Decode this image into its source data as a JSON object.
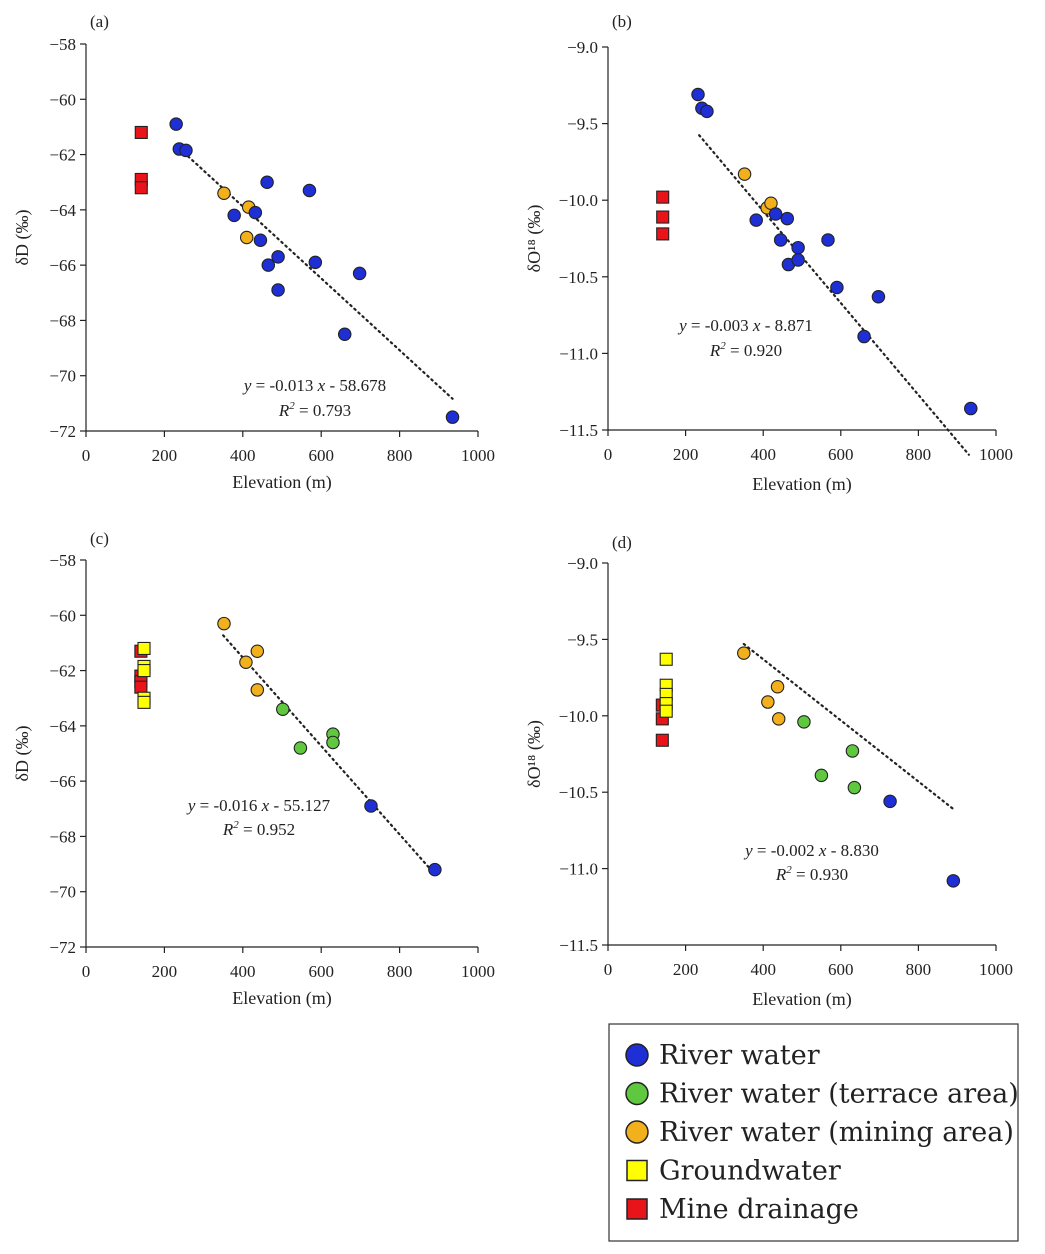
{
  "colors": {
    "river": "#1f2fd6",
    "terrace": "#5fc83e",
    "mining": "#f2b01c",
    "groundwater": "#ffff00",
    "drainage": "#e8141a"
  },
  "legend": {
    "items": [
      {
        "name": "River water",
        "type": "river",
        "shape": "circle"
      },
      {
        "name": "River water (terrace area)",
        "type": "terrace",
        "shape": "circle"
      },
      {
        "name": "River water (mining area)",
        "type": "mining",
        "shape": "circle"
      },
      {
        "name": "Groundwater",
        "type": "groundwater",
        "shape": "square"
      },
      {
        "name": "Mine drainage",
        "type": "drainage",
        "shape": "square"
      }
    ]
  },
  "chart_data": [
    {
      "id": "a",
      "label": "(a)",
      "type": "scatter",
      "xlabel": "Elevation (m)",
      "ylabel": "δD (‰)",
      "xlim": [
        0,
        1000
      ],
      "ylim": [
        -72,
        -58
      ],
      "xticks": [
        0,
        200,
        400,
        600,
        800,
        1000
      ],
      "yticks": [
        -58,
        -60,
        -62,
        -64,
        -66,
        -68,
        -70,
        -72
      ],
      "xtick_labels": [
        "0",
        "200",
        "400",
        "600",
        "800",
        "1000"
      ],
      "ytick_labels": [
        "−58",
        "−60",
        "−62",
        "−64",
        "−66",
        "−68",
        "−70",
        "−72"
      ],
      "equation": {
        "y": "y",
        "pre": " = -0.013 ",
        "x": "x",
        "post": " - 58.678"
      },
      "r2": {
        "r": "R",
        "sup": "2",
        "val": " = 0.793"
      },
      "trend_range": [
        240,
        935
      ],
      "slope": -0.013,
      "intercept": -58.678,
      "series": [
        {
          "type": "drainage",
          "points": [
            [
              141,
              -61.2
            ],
            [
              141,
              -62.9
            ],
            [
              141,
              -63.2
            ]
          ]
        },
        {
          "type": "mining",
          "points": [
            [
              352,
              -63.4
            ],
            [
              415,
              -63.9
            ],
            [
              410,
              -65.0
            ]
          ]
        },
        {
          "type": "river",
          "points": [
            [
              230,
              -60.9
            ],
            [
              238,
              -61.8
            ],
            [
              255,
              -61.85
            ],
            [
              378,
              -64.2
            ],
            [
              432,
              -64.1
            ],
            [
              445,
              -65.1
            ],
            [
              462,
              -63.0
            ],
            [
              465,
              -66.0
            ],
            [
              490,
              -65.7
            ],
            [
              490,
              -66.9
            ],
            [
              570,
              -63.3
            ],
            [
              585,
              -65.9
            ],
            [
              698,
              -66.3
            ],
            [
              660,
              -68.5
            ],
            [
              935,
              -71.5
            ]
          ]
        }
      ]
    },
    {
      "id": "b",
      "label": "(b)",
      "type": "scatter",
      "xlabel": "Elevation (m)",
      "ylabel": "δO¹⁸ (‰)",
      "xlim": [
        0,
        1000
      ],
      "ylim": [
        -11.5,
        -9.0
      ],
      "xticks": [
        0,
        200,
        400,
        600,
        800,
        1000
      ],
      "yticks": [
        -9.0,
        -9.5,
        -10.0,
        -10.5,
        -11.0,
        -11.5
      ],
      "xtick_labels": [
        "0",
        "200",
        "400",
        "600",
        "800",
        "1000"
      ],
      "ytick_labels": [
        "−9.0",
        "−9.5",
        "−10.0",
        "−10.5",
        "−11.0",
        "−11.5"
      ],
      "equation": {
        "y": "y",
        "pre": " = -0.003  ",
        "x": "x",
        "post": " - 8.871"
      },
      "r2": {
        "r": "R",
        "sup": "2",
        "val": " = 0.920"
      },
      "trend_range": [
        235,
        930
      ],
      "slope": -0.003,
      "intercept": -8.871,
      "series": [
        {
          "type": "drainage",
          "points": [
            [
              141,
              -9.98
            ],
            [
              141,
              -10.11
            ],
            [
              141,
              -10.22
            ]
          ]
        },
        {
          "type": "mining",
          "points": [
            [
              352,
              -9.83
            ],
            [
              410,
              -10.05
            ],
            [
              420,
              -10.02
            ]
          ]
        },
        {
          "type": "river",
          "points": [
            [
              232,
              -9.31
            ],
            [
              242,
              -9.4
            ],
            [
              255,
              -9.42
            ],
            [
              382,
              -10.13
            ],
            [
              432,
              -10.09
            ],
            [
              445,
              -10.26
            ],
            [
              462,
              -10.12
            ],
            [
              465,
              -10.42
            ],
            [
              490,
              -10.31
            ],
            [
              490,
              -10.39
            ],
            [
              567,
              -10.26
            ],
            [
              590,
              -10.57
            ],
            [
              697,
              -10.63
            ],
            [
              660,
              -10.89
            ],
            [
              935,
              -11.36
            ]
          ]
        }
      ]
    },
    {
      "id": "c",
      "label": "(c)",
      "type": "scatter",
      "xlabel": "Elevation (m)",
      "ylabel": "δD (‰)",
      "xlim": [
        0,
        1000
      ],
      "ylim": [
        -72,
        -58
      ],
      "xticks": [
        0,
        200,
        400,
        600,
        800,
        1000
      ],
      "yticks": [
        -58,
        -60,
        -62,
        -64,
        -66,
        -68,
        -70,
        -72
      ],
      "xtick_labels": [
        "0",
        "200",
        "400",
        "600",
        "800",
        "1000"
      ],
      "ytick_labels": [
        "−58",
        "−60",
        "−62",
        "−64",
        "−66",
        "−68",
        "−70",
        "−72"
      ],
      "equation": {
        "y": "y",
        "pre": " = -0.016  ",
        "x": "x",
        "post": " - 55.127"
      },
      "r2": {
        "r": "R",
        "sup": "2",
        "val": " = 0.952"
      },
      "trend_range": [
        350,
        890
      ],
      "slope": -0.016,
      "intercept": -55.127,
      "series": [
        {
          "type": "drainage",
          "points": [
            [
              140,
              -61.3
            ],
            [
              140,
              -62.2
            ],
            [
              140,
              -62.4
            ],
            [
              140,
              -62.6
            ]
          ]
        },
        {
          "type": "groundwater",
          "points": [
            [
              148,
              -61.2
            ],
            [
              148,
              -61.85
            ],
            [
              148,
              -62.0
            ],
            [
              148,
              -63.0
            ],
            [
              148,
              -63.15
            ]
          ]
        },
        {
          "type": "mining",
          "points": [
            [
              352,
              -60.3
            ],
            [
              408,
              -61.7
            ],
            [
              437,
              -61.3
            ],
            [
              437,
              -62.7
            ]
          ]
        },
        {
          "type": "terrace",
          "points": [
            [
              502,
              -63.4
            ],
            [
              547,
              -64.8
            ],
            [
              630,
              -64.3
            ],
            [
              630,
              -64.6
            ]
          ]
        },
        {
          "type": "river",
          "points": [
            [
              727,
              -66.9
            ],
            [
              890,
              -69.2
            ]
          ]
        }
      ]
    },
    {
      "id": "d",
      "label": "(d)",
      "type": "scatter",
      "xlabel": "Elevation (m)",
      "ylabel": "δO¹⁸ (‰)",
      "xlim": [
        0,
        1000
      ],
      "ylim": [
        -11.5,
        -9.0
      ],
      "xticks": [
        0,
        200,
        400,
        600,
        800,
        1000
      ],
      "yticks": [
        -9.0,
        -9.5,
        -10.0,
        -10.5,
        -11.0,
        -11.5
      ],
      "xtick_labels": [
        "0",
        "200",
        "400",
        "600",
        "800",
        "1000"
      ],
      "ytick_labels": [
        "−9.0",
        "−9.5",
        "−10.0",
        "−10.5",
        "−11.0",
        "−11.5"
      ],
      "equation": {
        "y": "y",
        "pre": " = -0.002  ",
        "x": "x",
        "post": " - 8.830"
      },
      "r2": {
        "r": "R",
        "sup": "2",
        "val": " = 0.930"
      },
      "trend_range": [
        350,
        890
      ],
      "slope": -0.002,
      "intercept": -8.83,
      "series": [
        {
          "type": "drainage",
          "points": [
            [
              140,
              -9.93
            ],
            [
              140,
              -10.02
            ],
            [
              140,
              -10.16
            ]
          ]
        },
        {
          "type": "groundwater",
          "points": [
            [
              150,
              -9.63
            ],
            [
              150,
              -9.8
            ],
            [
              150,
              -9.86
            ],
            [
              150,
              -9.92
            ],
            [
              150,
              -9.97
            ]
          ]
        },
        {
          "type": "mining",
          "points": [
            [
              350,
              -9.59
            ],
            [
              412,
              -9.91
            ],
            [
              437,
              -9.81
            ],
            [
              440,
              -10.02
            ]
          ]
        },
        {
          "type": "terrace",
          "points": [
            [
              505,
              -10.04
            ],
            [
              550,
              -10.39
            ],
            [
              630,
              -10.23
            ],
            [
              635,
              -10.47
            ]
          ]
        },
        {
          "type": "river",
          "points": [
            [
              727,
              -10.56
            ],
            [
              890,
              -11.08
            ]
          ]
        }
      ]
    }
  ]
}
